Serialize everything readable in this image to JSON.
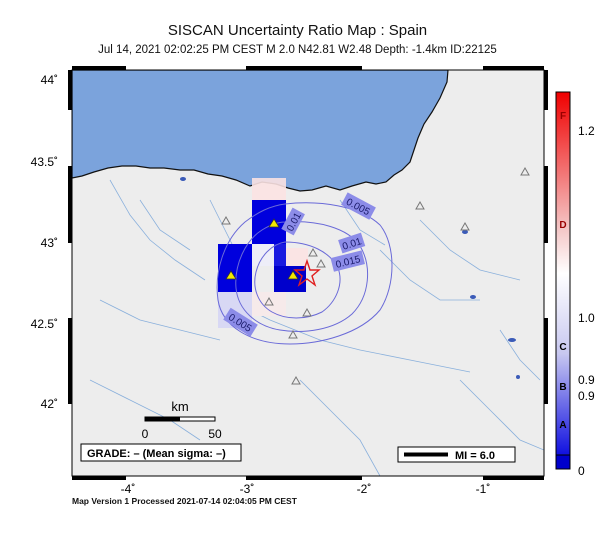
{
  "header": {
    "title": "SISCAN Uncertainty Ratio Map : Spain",
    "subtitle": "Jul 14, 2021 02:02:25 PM CEST   M 2.0   N42.81 W2.48   Depth: -1.4km   ID:22125"
  },
  "map": {
    "lon_ticks": [
      "-4˚",
      "-3˚",
      "-2˚",
      "-1˚"
    ],
    "lat_ticks": [
      "44˚",
      "43.5˚",
      "43˚",
      "42.5˚",
      "42˚"
    ],
    "contour_labels": [
      "0.005",
      "0.01",
      "0.015",
      "0.01",
      "0.005"
    ],
    "colors": {
      "sea": "#7ba3dc",
      "land": "#ededed",
      "contour": "#6a6ad8",
      "epicenter": "#e02020"
    }
  },
  "scale_bar": {
    "unit": "km",
    "start": "0",
    "end": "50"
  },
  "grade_box": {
    "text": "GRADE: – (Mean sigma: –)"
  },
  "mi_legend": {
    "text": "MI = 6.0"
  },
  "colorbar": {
    "letters": [
      "F",
      "D",
      "C",
      "B",
      "A"
    ],
    "values": [
      "1.2",
      "1.0",
      "0.9",
      "0.9",
      "0"
    ]
  },
  "footer": {
    "text": "Map Version 1 Processed 2021-07-14 02:04:05 PM CEST"
  }
}
